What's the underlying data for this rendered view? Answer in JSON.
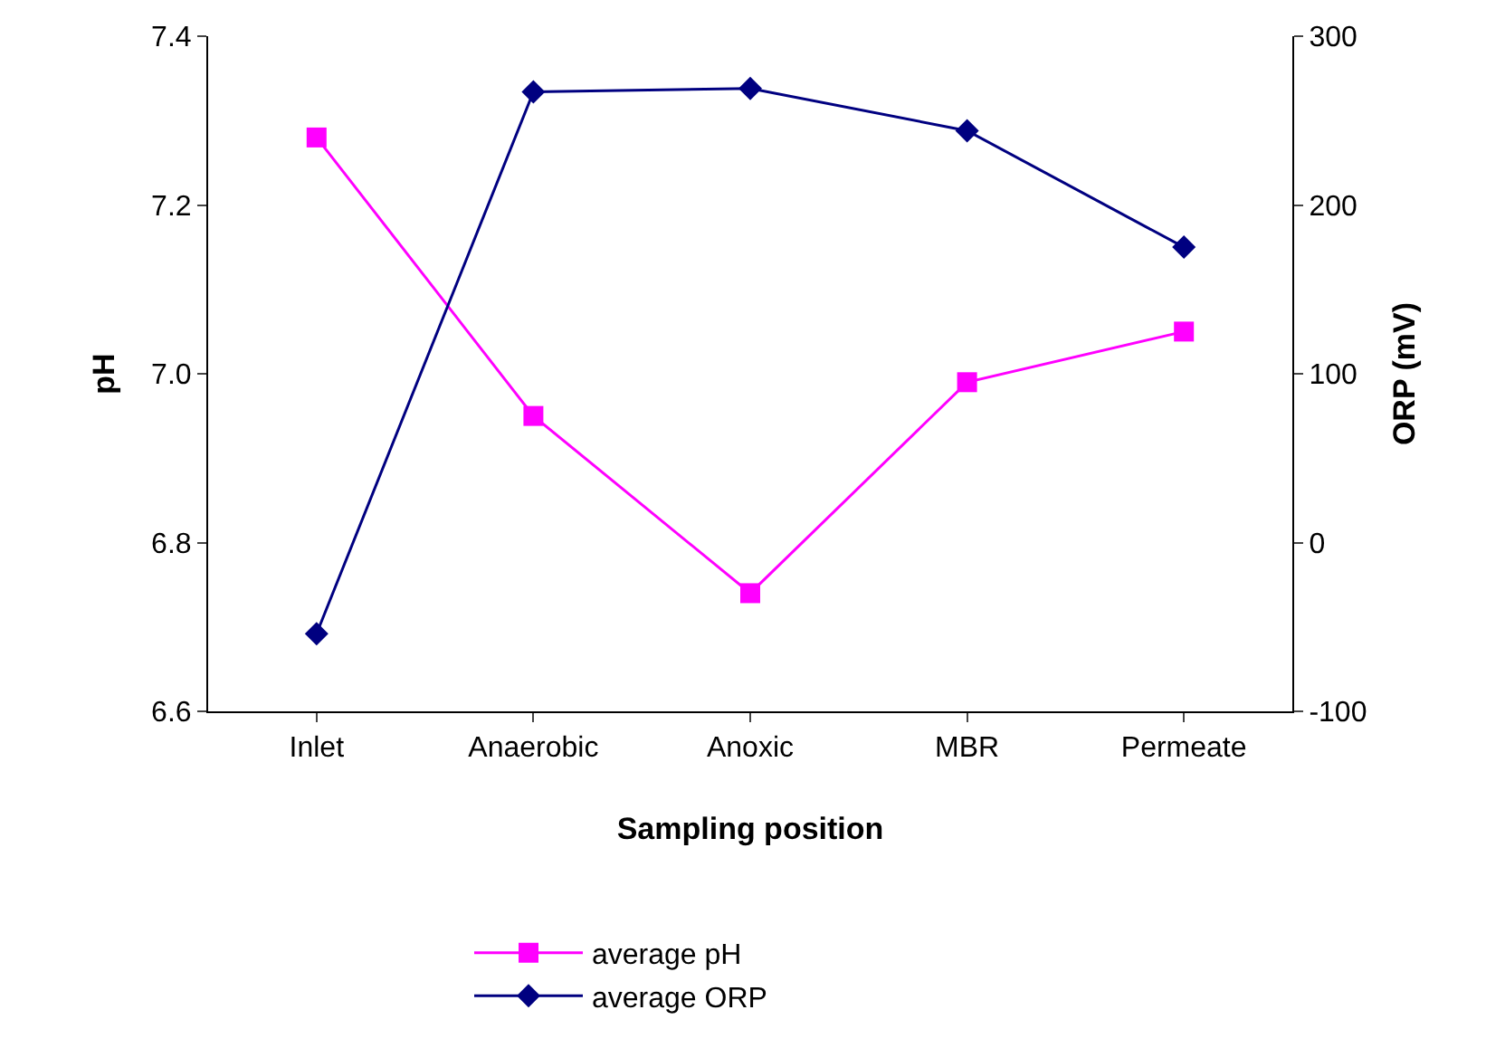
{
  "chart_data": {
    "type": "line",
    "xlabel": "Sampling position",
    "ylabel": "pH",
    "y2label": "ORP (mV)",
    "categories": [
      "Inlet",
      "Anaerobic",
      "Anoxic",
      "MBR",
      "Permeate"
    ],
    "series": [
      {
        "name": "average pH",
        "color": "#ff00ff",
        "marker": "square",
        "values": [
          7.28,
          6.95,
          6.74,
          6.99,
          7.05
        ]
      },
      {
        "name": "average ORP",
        "color": "#000080",
        "marker": "diamond",
        "axis": "y2",
        "values": [
          -54,
          267,
          269,
          244,
          175
        ]
      }
    ],
    "ylim": [
      6.6,
      7.4
    ],
    "yticks": [
      {
        "value": 6.6,
        "label": "6.6"
      },
      {
        "value": 6.8,
        "label": "6.8"
      },
      {
        "value": 7.0,
        "label": "7.0"
      },
      {
        "value": 7.2,
        "label": "7.2"
      },
      {
        "value": 7.4,
        "label": "7.4"
      }
    ],
    "y2lim": [
      -100,
      300
    ],
    "y2ticks": [
      -100,
      0,
      100,
      200,
      300
    ],
    "legend": "bottom",
    "line_style": "solid"
  }
}
